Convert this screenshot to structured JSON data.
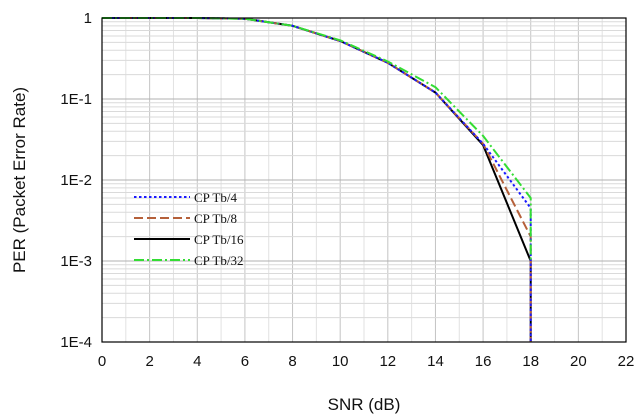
{
  "chart_data": {
    "type": "line",
    "xlabel": "SNR (dB)",
    "ylabel": "PER (Packet Error Rate)",
    "xlim": [
      0,
      22
    ],
    "ylim": [
      0.0001,
      1
    ],
    "yscale": "log",
    "grid": true,
    "legend_position": "left",
    "x_ticks": [
      0,
      2,
      4,
      6,
      8,
      10,
      12,
      14,
      16,
      18,
      20,
      22
    ],
    "x_tick_labels": [
      "0",
      "2",
      "4",
      "6",
      "8",
      "10",
      "12",
      "14",
      "16",
      "18",
      "20",
      "22"
    ],
    "y_ticks": [
      1,
      0.1,
      0.01,
      0.001,
      0.0001
    ],
    "y_tick_labels": [
      "1",
      "1E-1",
      "1E-2",
      "1E-3",
      "1E-4"
    ],
    "series": [
      {
        "name": "CP Tb/4",
        "color": "#1a1aff",
        "dash": "dotted",
        "x": [
          0,
          4,
          6,
          8,
          10,
          12,
          14,
          16,
          18,
          18
        ],
        "y": [
          1,
          1,
          0.98,
          0.8,
          0.52,
          0.28,
          0.12,
          0.028,
          0.0045,
          0.0001
        ]
      },
      {
        "name": "CP Tb/8",
        "color": "#b5603a",
        "dash": "dashed",
        "x": [
          0,
          4,
          6,
          8,
          10,
          12,
          14,
          16,
          18,
          18
        ],
        "y": [
          1,
          1,
          0.98,
          0.8,
          0.52,
          0.28,
          0.12,
          0.028,
          0.002,
          0.0001
        ]
      },
      {
        "name": "CP Tb/16",
        "color": "#000000",
        "dash": "solid",
        "x": [
          0,
          4,
          6,
          8,
          10,
          12,
          14,
          16,
          18,
          18
        ],
        "y": [
          1,
          1,
          0.98,
          0.8,
          0.52,
          0.28,
          0.12,
          0.027,
          0.001,
          0.0001
        ]
      },
      {
        "name": "CP Tb/32",
        "color": "#33dd33",
        "dash": "dashdot",
        "x": [
          0,
          4,
          6,
          8,
          10,
          12,
          14,
          16,
          18,
          18
        ],
        "y": [
          1,
          1,
          0.98,
          0.8,
          0.53,
          0.29,
          0.14,
          0.035,
          0.006,
          0.001
        ]
      }
    ]
  }
}
